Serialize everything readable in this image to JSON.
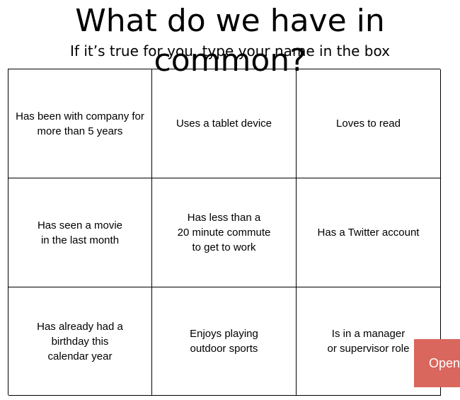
{
  "slide": {
    "title": "What do we have in common?",
    "subtitle": "If it’s true for you, type your name in the box"
  },
  "grid": {
    "cells": [
      "Has been with company for\nmore than 5 years",
      "Uses a tablet device",
      "Loves to read",
      "Has seen a movie\nin the last month",
      "Has less than a\n20 minute commute\nto get to work",
      "Has a Twitter account",
      "Has already had a\nbirthday this\ncalendar year",
      "Enjoys playing\noutdoor sports",
      "Is in a manager\nor supervisor role"
    ]
  },
  "overlay": {
    "open_label": "Open",
    "open_color": "#d9675d"
  }
}
